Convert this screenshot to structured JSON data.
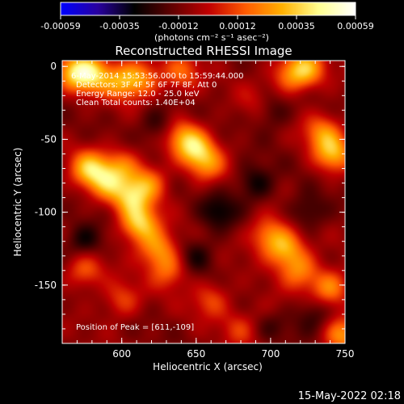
{
  "colorbar": {
    "ticks": [
      "-0.00059",
      "-0.00035",
      "-0.00012",
      "0.00012",
      "0.00035",
      "0.00059"
    ],
    "units_label": "(photons cm⁻² s⁻¹ asec⁻²)",
    "stops": [
      "#0000ff",
      "#2a00a0",
      "#000000",
      "#600000",
      "#c00000",
      "#ff5a00",
      "#ffb000",
      "#ffff90",
      "#ffffff"
    ]
  },
  "chart_data": {
    "type": "heatmap",
    "title": "Reconstructed RHESSI Image",
    "xlabel": "Heliocentric X (arcsec)",
    "ylabel": "Heliocentric Y (arcsec)",
    "xlim": [
      560,
      750
    ],
    "ylim": [
      -190,
      4
    ],
    "xticks": [
      "600",
      "650",
      "700",
      "750"
    ],
    "yticks": [
      "0",
      "-50",
      "-100",
      "-150"
    ],
    "annotations": [
      "6-May-2014 15:53:56.000 to 15:59:44.000",
      "Detectors: 3F 4F 5F 6F 7F 8F, Att 0",
      "Energy Range: 12.0 - 25.0 keV",
      "Clean     Total counts: 1.40E+04"
    ],
    "peak_label": "Position of Peak = [611,-109]",
    "peak": [
      611,
      -109
    ],
    "color_range": [
      -0.00059,
      0.00059
    ],
    "sources": [
      {
        "x": 580,
        "y": -5,
        "amp": 1.0
      },
      {
        "x": 568,
        "y": -4,
        "amp": 0.9
      },
      {
        "x": 600,
        "y": -10,
        "amp": 0.8
      },
      {
        "x": 614,
        "y": -8,
        "amp": 0.7
      },
      {
        "x": 640,
        "y": -5,
        "amp": 0.6
      },
      {
        "x": 724,
        "y": -2,
        "amp": 0.9
      },
      {
        "x": 712,
        "y": -6,
        "amp": 0.6
      },
      {
        "x": 578,
        "y": -70,
        "amp": 1.0
      },
      {
        "x": 590,
        "y": -80,
        "amp": 0.8
      },
      {
        "x": 600,
        "y": -68,
        "amp": 0.6
      },
      {
        "x": 650,
        "y": -57,
        "amp": 0.9
      },
      {
        "x": 640,
        "y": -48,
        "amp": 0.7
      },
      {
        "x": 658,
        "y": -68,
        "amp": 0.6
      },
      {
        "x": 612,
        "y": -108,
        "amp": 1.1
      },
      {
        "x": 606,
        "y": -90,
        "amp": 0.9
      },
      {
        "x": 618,
        "y": -80,
        "amp": 0.7
      },
      {
        "x": 624,
        "y": -125,
        "amp": 0.8
      },
      {
        "x": 632,
        "y": -140,
        "amp": 0.6
      },
      {
        "x": 742,
        "y": -60,
        "amp": 0.9
      },
      {
        "x": 735,
        "y": -45,
        "amp": 0.7
      },
      {
        "x": 710,
        "y": -125,
        "amp": 0.9
      },
      {
        "x": 698,
        "y": -115,
        "amp": 0.7
      },
      {
        "x": 720,
        "y": -140,
        "amp": 0.7
      },
      {
        "x": 740,
        "y": -152,
        "amp": 0.8
      },
      {
        "x": 748,
        "y": -185,
        "amp": 0.8
      },
      {
        "x": 575,
        "y": -140,
        "amp": 0.6
      },
      {
        "x": 600,
        "y": -160,
        "amp": 0.5
      },
      {
        "x": 660,
        "y": -160,
        "amp": 0.5
      },
      {
        "x": 680,
        "y": -180,
        "amp": 0.4
      },
      {
        "x": 700,
        "y": -170,
        "amp": 0.4
      },
      {
        "x": 690,
        "y": -25,
        "amp": 0.3
      },
      {
        "x": 665,
        "y": -100,
        "amp": -0.5
      },
      {
        "x": 690,
        "y": -80,
        "amp": -0.5
      },
      {
        "x": 575,
        "y": -120,
        "amp": -0.5
      },
      {
        "x": 700,
        "y": -30,
        "amp": -0.4
      },
      {
        "x": 700,
        "y": -175,
        "amp": -0.5
      },
      {
        "x": 625,
        "y": -40,
        "amp": -0.4
      },
      {
        "x": 725,
        "y": -100,
        "amp": -0.4
      },
      {
        "x": 650,
        "y": -130,
        "amp": -0.4
      },
      {
        "x": 730,
        "y": -170,
        "amp": -0.4
      }
    ]
  },
  "footer": {
    "timestamp": "15-May-2022 02:18"
  }
}
